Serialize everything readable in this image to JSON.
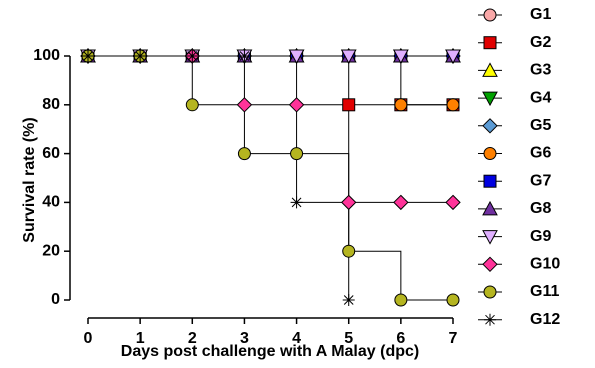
{
  "chart_data": {
    "type": "line",
    "step": true,
    "x_label": "Days post challenge with A Malay (dpc)",
    "y_label": "Survival rate (%)",
    "x": [
      0,
      1,
      2,
      3,
      4,
      5,
      6,
      7
    ],
    "xlim": [
      0,
      7
    ],
    "xticks": [
      0,
      1,
      2,
      3,
      4,
      5,
      6,
      7
    ],
    "ylim": [
      0,
      100
    ],
    "yticks": [
      0,
      20,
      40,
      60,
      80,
      100
    ],
    "legend": "right",
    "series": [
      {
        "name": "G1",
        "color": "#f9a8a8",
        "marker": "circle",
        "values": [
          100,
          100,
          100,
          100,
          100,
          100,
          100,
          100
        ]
      },
      {
        "name": "G2",
        "color": "#e00000",
        "marker": "square",
        "values": [
          100,
          100,
          100,
          100,
          100,
          80,
          80,
          80
        ]
      },
      {
        "name": "G3",
        "color": "#ffff00",
        "marker": "triangle-up",
        "values": [
          100,
          100,
          100,
          100,
          100,
          100,
          100,
          100
        ]
      },
      {
        "name": "G4",
        "color": "#00a000",
        "marker": "triangle-down",
        "values": [
          100,
          100,
          100,
          100,
          100,
          100,
          100,
          100
        ]
      },
      {
        "name": "G5",
        "color": "#5b9bd5",
        "marker": "diamond",
        "values": [
          100,
          100,
          100,
          100,
          100,
          100,
          100,
          100
        ]
      },
      {
        "name": "G6",
        "color": "#ff8000",
        "marker": "circle",
        "values": [
          100,
          100,
          100,
          100,
          100,
          100,
          80,
          80
        ]
      },
      {
        "name": "G7",
        "color": "#0000e0",
        "marker": "square",
        "values": [
          100,
          100,
          100,
          100,
          100,
          100,
          100,
          100
        ]
      },
      {
        "name": "G8",
        "color": "#7030a0",
        "marker": "triangle-up",
        "values": [
          100,
          100,
          100,
          100,
          100,
          100,
          100,
          100
        ]
      },
      {
        "name": "G9",
        "color": "#e0b0ff",
        "marker": "triangle-down",
        "values": [
          100,
          100,
          100,
          100,
          100,
          100,
          100,
          100
        ]
      },
      {
        "name": "G10",
        "color": "#ff3399",
        "marker": "diamond",
        "values": [
          100,
          100,
          100,
          80,
          80,
          40,
          40,
          40
        ]
      },
      {
        "name": "G11",
        "color": "#b5b520",
        "marker": "circle",
        "values": [
          100,
          100,
          80,
          60,
          60,
          20,
          0,
          0
        ]
      },
      {
        "name": "G12",
        "color": "#000000",
        "marker": "star",
        "values": [
          100,
          100,
          100,
          100,
          40,
          0,
          null,
          null
        ]
      }
    ]
  }
}
